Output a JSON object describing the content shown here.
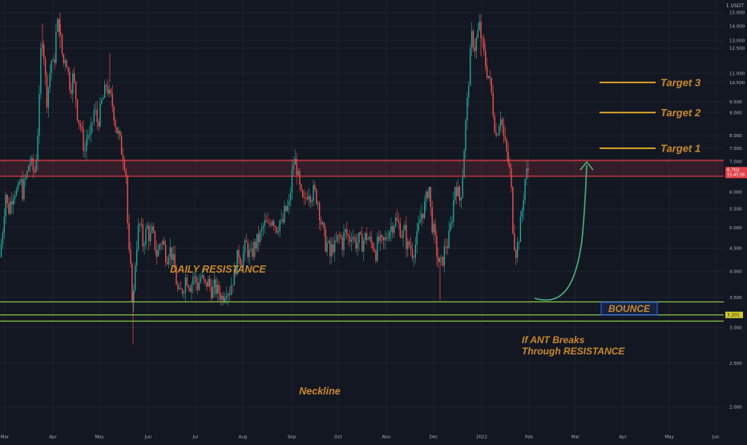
{
  "chart_data": {
    "type": "candlestick",
    "currency_label": "1 USDT",
    "y_scale": "log",
    "ylim": [
      1.75,
      16.0
    ],
    "y_ticks": [
      "15.000",
      "14.000",
      "13.000",
      "12.500",
      "11.000",
      "10.500",
      "9.500",
      "9.000",
      "8.000",
      "7.500",
      "7.000",
      "6.500",
      "6.000",
      "5.500",
      "5.000",
      "4.500",
      "4.000",
      "3.500",
      "3.000",
      "2.500",
      "2.000"
    ],
    "x_ticks": [
      "Mar",
      "Apr",
      "May",
      "Jun",
      "Jul",
      "Aug",
      "Sep",
      "Oct",
      "Nov",
      "Dec",
      "2022",
      "Feb",
      "Mar",
      "Apr",
      "May",
      "Jun"
    ],
    "price_badge": {
      "value": "6.702",
      "countdown": "15:45:56",
      "y": 6.65
    },
    "support_badge": {
      "value": "3.201",
      "y": 3.2
    },
    "colors": {
      "up": "#26a69a",
      "down": "#ef5350",
      "resistance": "#e0414a",
      "neckline": "#8bc34a",
      "target": "#f0b429",
      "label": "#c7892f",
      "arrow": "#4caf7d",
      "bounce_box": "#2962ff"
    },
    "daily_resistance": {
      "label": "DAILY RESISTANCE",
      "low": 6.5,
      "high": 7.05
    },
    "neckline": {
      "label": "Neckline",
      "lines": [
        3.42,
        3.2,
        3.1
      ]
    },
    "targets": [
      {
        "label": "Target 1",
        "y": 7.5
      },
      {
        "label": "Target 2",
        "y": 9.0
      },
      {
        "label": "Target 3",
        "y": 10.5
      }
    ],
    "bounce_label": "BOUNCE",
    "breakout_note": [
      "If ANT Breaks",
      "Through RESISTANCE"
    ],
    "price_path": [
      [
        0,
        4.3
      ],
      [
        4,
        5.1
      ],
      [
        7,
        6.0
      ],
      [
        10,
        5.4
      ],
      [
        14,
        5.8
      ],
      [
        18,
        6.1
      ],
      [
        22,
        5.9
      ],
      [
        25,
        6.4
      ],
      [
        28,
        6.0
      ],
      [
        31,
        6.3
      ],
      [
        34,
        6.6
      ],
      [
        37,
        7.1
      ],
      [
        40,
        6.8
      ],
      [
        43,
        6.6
      ],
      [
        46,
        7.4
      ],
      [
        49,
        9.5
      ],
      [
        52,
        13.8
      ],
      [
        55,
        12.0
      ],
      [
        58,
        9.5
      ],
      [
        61,
        10.5
      ],
      [
        64,
        11.8
      ],
      [
        67,
        11.2
      ],
      [
        70,
        13.5
      ],
      [
        73,
        14.5
      ],
      [
        76,
        12.8
      ],
      [
        79,
        11.5
      ],
      [
        82,
        12.2
      ],
      [
        85,
        11.0
      ],
      [
        88,
        10.2
      ],
      [
        91,
        10.8
      ],
      [
        94,
        10.0
      ],
      [
        97,
        8.8
      ],
      [
        100,
        8.5
      ],
      [
        103,
        7.8
      ],
      [
        106,
        7.4
      ],
      [
        109,
        8.2
      ],
      [
        112,
        7.8
      ],
      [
        115,
        8.5
      ],
      [
        118,
        9.2
      ],
      [
        121,
        8.6
      ],
      [
        124,
        8.8
      ],
      [
        127,
        9.5
      ],
      [
        130,
        9.8
      ],
      [
        133,
        10.5
      ],
      [
        136,
        9.8
      ],
      [
        139,
        9.6
      ],
      [
        142,
        9.0
      ],
      [
        145,
        8.3
      ],
      [
        148,
        8.0
      ],
      [
        151,
        7.5
      ],
      [
        154,
        7.2
      ],
      [
        157,
        6.8
      ],
      [
        160,
        4.5
      ],
      [
        163,
        4.0
      ],
      [
        166,
        3.3
      ],
      [
        169,
        4.3
      ],
      [
        172,
        4.9
      ],
      [
        175,
        5.1
      ],
      [
        178,
        4.6
      ],
      [
        181,
        4.8
      ],
      [
        184,
        5.0
      ],
      [
        187,
        4.7
      ],
      [
        190,
        4.9
      ],
      [
        193,
        4.6
      ],
      [
        196,
        4.3
      ],
      [
        199,
        4.6
      ],
      [
        202,
        4.7
      ],
      [
        205,
        4.5
      ],
      [
        208,
        4.3
      ],
      [
        211,
        4.5
      ],
      [
        214,
        4.4
      ],
      [
        217,
        4.1
      ],
      [
        220,
        3.8
      ],
      [
        223,
        3.5
      ],
      [
        226,
        3.6
      ],
      [
        229,
        3.7
      ],
      [
        232,
        3.9
      ],
      [
        235,
        3.8
      ],
      [
        238,
        3.7
      ],
      [
        241,
        3.9
      ],
      [
        244,
        3.8
      ],
      [
        247,
        3.7
      ],
      [
        250,
        3.9
      ],
      [
        253,
        3.8
      ],
      [
        256,
        3.7
      ],
      [
        259,
        3.8
      ],
      [
        262,
        3.7
      ],
      [
        265,
        3.6
      ],
      [
        268,
        3.7
      ],
      [
        271,
        3.6
      ],
      [
        274,
        3.6
      ],
      [
        277,
        3.5
      ],
      [
        280,
        3.6
      ],
      [
        283,
        3.7
      ],
      [
        286,
        3.6
      ],
      [
        289,
        3.8
      ],
      [
        292,
        3.9
      ],
      [
        295,
        4.2
      ],
      [
        298,
        4.4
      ],
      [
        301,
        4.2
      ],
      [
        304,
        4.4
      ],
      [
        307,
        4.6
      ],
      [
        310,
        4.4
      ],
      [
        313,
        4.3
      ],
      [
        316,
        4.5
      ],
      [
        319,
        4.6
      ],
      [
        322,
        4.7
      ],
      [
        325,
        4.8
      ],
      [
        328,
        5.0
      ],
      [
        331,
        5.1
      ],
      [
        334,
        5.0
      ],
      [
        337,
        5.2
      ],
      [
        340,
        5.3
      ],
      [
        343,
        5.1
      ],
      [
        346,
        5.0
      ],
      [
        349,
        5.2
      ],
      [
        352,
        5.0
      ],
      [
        355,
        5.4
      ],
      [
        358,
        5.5
      ],
      [
        361,
        5.6
      ],
      [
        364,
        6.5
      ],
      [
        367,
        7.1
      ],
      [
        370,
        6.8
      ],
      [
        373,
        6.2
      ],
      [
        376,
        5.8
      ],
      [
        379,
        5.6
      ],
      [
        382,
        5.9
      ],
      [
        385,
        6.1
      ],
      [
        388,
        5.9
      ],
      [
        391,
        6.0
      ],
      [
        394,
        5.9
      ],
      [
        397,
        5.7
      ],
      [
        400,
        5.2
      ],
      [
        403,
        4.9
      ],
      [
        406,
        4.6
      ],
      [
        409,
        4.6
      ],
      [
        412,
        4.3
      ],
      [
        415,
        4.6
      ],
      [
        418,
        4.5
      ],
      [
        421,
        4.7
      ],
      [
        424,
        4.8
      ],
      [
        427,
        4.6
      ],
      [
        430,
        4.9
      ],
      [
        433,
        4.8
      ],
      [
        436,
        4.7
      ],
      [
        439,
        4.9
      ],
      [
        442,
        4.7
      ],
      [
        445,
        4.6
      ],
      [
        448,
        4.7
      ],
      [
        451,
        4.6
      ],
      [
        454,
        4.7
      ],
      [
        457,
        4.8
      ],
      [
        460,
        4.7
      ],
      [
        463,
        4.6
      ],
      [
        466,
        4.6
      ],
      [
        469,
        4.4
      ],
      [
        472,
        4.7
      ],
      [
        475,
        4.6
      ],
      [
        478,
        4.6
      ],
      [
        481,
        4.7
      ],
      [
        484,
        4.9
      ],
      [
        487,
        5.0
      ],
      [
        490,
        5.1
      ],
      [
        493,
        5.2
      ],
      [
        496,
        5.1
      ],
      [
        499,
        5.0
      ],
      [
        502,
        4.8
      ],
      [
        505,
        4.9
      ],
      [
        508,
        4.5
      ],
      [
        511,
        4.6
      ],
      [
        514,
        4.4
      ],
      [
        517,
        4.5
      ],
      [
        520,
        4.7
      ],
      [
        523,
        5.1
      ],
      [
        526,
        5.4
      ],
      [
        529,
        5.5
      ],
      [
        532,
        5.8
      ],
      [
        535,
        6.3
      ],
      [
        538,
        5.2
      ],
      [
        541,
        4.9
      ],
      [
        544,
        4.5
      ],
      [
        547,
        4.2
      ],
      [
        550,
        4.1
      ],
      [
        553,
        4.3
      ],
      [
        556,
        4.6
      ],
      [
        559,
        4.6
      ],
      [
        562,
        5.0
      ],
      [
        565,
        5.5
      ],
      [
        568,
        6.3
      ],
      [
        571,
        6.0
      ],
      [
        574,
        5.7
      ],
      [
        577,
        6.5
      ],
      [
        580,
        8.0
      ],
      [
        583,
        9.5
      ],
      [
        586,
        11.5
      ],
      [
        589,
        13.5
      ],
      [
        592,
        12.5
      ],
      [
        595,
        13.2
      ],
      [
        598,
        14.0
      ],
      [
        601,
        13.0
      ],
      [
        604,
        12.0
      ],
      [
        607,
        11.2
      ],
      [
        610,
        10.8
      ],
      [
        613,
        10.0
      ],
      [
        616,
        8.8
      ],
      [
        619,
        8.0
      ],
      [
        622,
        8.5
      ],
      [
        625,
        9.0
      ],
      [
        628,
        8.0
      ],
      [
        631,
        7.5
      ],
      [
        634,
        7.0
      ],
      [
        637,
        6.5
      ],
      [
        640,
        5.0
      ],
      [
        643,
        4.4
      ],
      [
        646,
        4.6
      ],
      [
        649,
        5.0
      ],
      [
        652,
        5.6
      ],
      [
        655,
        6.4
      ],
      [
        658,
        6.7
      ]
    ]
  }
}
